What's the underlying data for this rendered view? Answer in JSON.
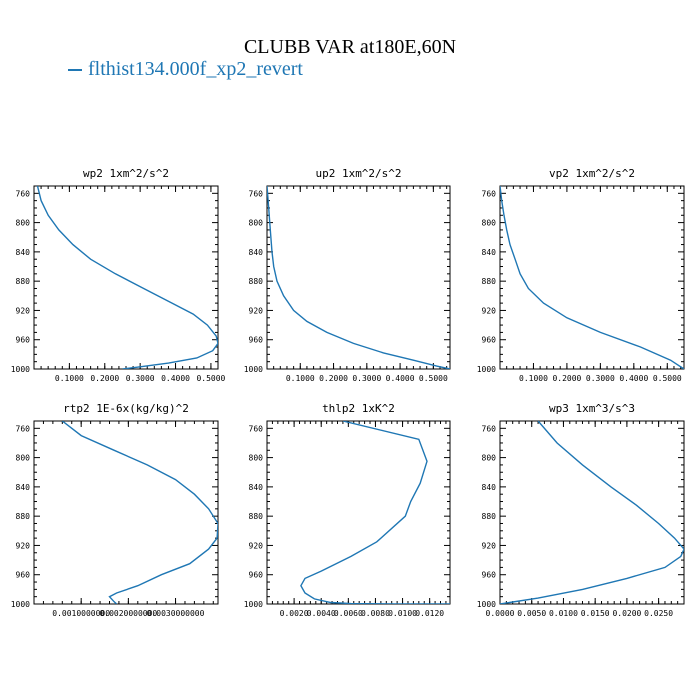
{
  "figure": {
    "title": "CLUBB VAR at180E,60N",
    "legend_label": "flthist134.000f_xp2_revert",
    "line_color": "#1f77b4"
  },
  "chart_data": [
    {
      "type": "line",
      "title": "wp2   1xm^2/s^2",
      "xlim": [
        0.0,
        0.52
      ],
      "ylim": [
        1000,
        750
      ],
      "xticks": [
        0.1,
        0.2,
        0.3,
        0.4,
        0.5
      ],
      "xtick_labels": [
        "0.1000",
        "0.2000",
        "0.3000",
        "0.4000",
        "0.5000"
      ],
      "yticks": [
        760,
        800,
        840,
        880,
        920,
        960,
        1000
      ],
      "series": [
        {
          "x": [
            0.01,
            0.02,
            0.04,
            0.07,
            0.11,
            0.16,
            0.23,
            0.31,
            0.39,
            0.45,
            0.49,
            0.515,
            0.52,
            0.505,
            0.46,
            0.38,
            0.3,
            0.25
          ],
          "y": [
            750,
            770,
            790,
            810,
            830,
            850,
            870,
            890,
            910,
            925,
            940,
            955,
            965,
            975,
            985,
            992,
            997,
            1000
          ]
        }
      ]
    },
    {
      "type": "line",
      "title": "up2   1xm^2/s^2",
      "xlim": [
        0.0,
        0.55
      ],
      "ylim": [
        1000,
        750
      ],
      "xticks": [
        0.1,
        0.2,
        0.3,
        0.4,
        0.5
      ],
      "xtick_labels": [
        "0.1000",
        "0.2000",
        "0.3000",
        "0.4000",
        "0.5000"
      ],
      "yticks": [
        760,
        800,
        840,
        880,
        920,
        960,
        1000
      ],
      "series": [
        {
          "x": [
            0.0,
            0.005,
            0.01,
            0.015,
            0.02,
            0.03,
            0.05,
            0.08,
            0.12,
            0.18,
            0.26,
            0.35,
            0.44,
            0.51,
            0.55
          ],
          "y": [
            750,
            780,
            810,
            840,
            860,
            880,
            900,
            920,
            935,
            950,
            965,
            978,
            988,
            996,
            1000
          ]
        }
      ]
    },
    {
      "type": "line",
      "title": "vp2   1xm^2/s^2",
      "xlim": [
        0.0,
        0.55
      ],
      "ylim": [
        1000,
        750
      ],
      "xticks": [
        0.1,
        0.2,
        0.3,
        0.4,
        0.5
      ],
      "xtick_labels": [
        "0.1000",
        "0.2000",
        "0.3000",
        "0.4000",
        "0.5000"
      ],
      "yticks": [
        760,
        800,
        840,
        880,
        920,
        960,
        1000
      ],
      "series": [
        {
          "x": [
            0.0,
            0.005,
            0.012,
            0.02,
            0.03,
            0.045,
            0.06,
            0.085,
            0.13,
            0.2,
            0.3,
            0.42,
            0.51,
            0.55
          ],
          "y": [
            750,
            770,
            790,
            810,
            830,
            850,
            870,
            890,
            910,
            930,
            950,
            970,
            988,
            1000
          ]
        }
      ]
    },
    {
      "type": "line",
      "title": "rtp2   1E-6x(kg/kg)^2",
      "xlim": [
        0.0,
        3.9
      ],
      "ylim": [
        1000,
        750
      ],
      "xticks": [
        1.0,
        2.0,
        3.0
      ],
      "xtick_labels": [
        "0.0010000000",
        "0.0020000000",
        "0.0030000000"
      ],
      "yticks": [
        760,
        800,
        840,
        880,
        920,
        960,
        1000
      ],
      "series": [
        {
          "x": [
            0.6,
            1.0,
            1.7,
            2.4,
            3.0,
            3.4,
            3.7,
            3.9,
            3.88,
            3.7,
            3.3,
            2.7,
            2.2,
            1.75,
            1.6,
            1.7,
            1.75
          ],
          "y": [
            750,
            770,
            790,
            810,
            830,
            850,
            870,
            890,
            910,
            925,
            945,
            960,
            975,
            985,
            990,
            997,
            1000
          ]
        }
      ]
    },
    {
      "type": "line",
      "title": "thlp2   1xK^2",
      "xlim": [
        0.0,
        0.0135
      ],
      "ylim": [
        1000,
        750
      ],
      "xticks": [
        0.002,
        0.004,
        0.006,
        0.008,
        0.01,
        0.012
      ],
      "xtick_labels": [
        "0.0020",
        "0.0040",
        "0.0060",
        "0.0080",
        "0.0100",
        "0.0120"
      ],
      "yticks": [
        760,
        800,
        840,
        880,
        920,
        960,
        1000
      ],
      "series": [
        {
          "x": [
            0.0056,
            0.0112,
            0.0118,
            0.0113,
            0.0106,
            0.0102,
            0.0081,
            0.0062,
            0.004,
            0.0028,
            0.0025,
            0.0028,
            0.0035,
            0.0047,
            0.0062,
            0.0095,
            0.0135
          ],
          "y": [
            750,
            775,
            805,
            835,
            860,
            880,
            915,
            935,
            955,
            965,
            975,
            985,
            993,
            998,
            999.5,
            1000,
            1000
          ]
        }
      ]
    },
    {
      "type": "line",
      "title": "wp3   1xm^3/s^3",
      "xlim": [
        0.0,
        0.029
      ],
      "ylim": [
        1000,
        750
      ],
      "xticks": [
        0.0,
        0.005,
        0.01,
        0.015,
        0.02,
        0.025
      ],
      "xtick_labels": [
        "0.0000",
        "0.0050",
        "0.0100",
        "0.0150",
        "0.0200",
        "0.0250"
      ],
      "yticks": [
        760,
        800,
        840,
        880,
        920,
        960,
        1000
      ],
      "series": [
        {
          "x": [
            0.006,
            0.009,
            0.013,
            0.0175,
            0.0215,
            0.025,
            0.0275,
            0.029,
            0.0285,
            0.026,
            0.02,
            0.013,
            0.006,
            0.0015,
            0.0
          ],
          "y": [
            750,
            780,
            810,
            840,
            865,
            890,
            910,
            925,
            935,
            950,
            965,
            980,
            992,
            998,
            1000
          ]
        }
      ]
    }
  ]
}
